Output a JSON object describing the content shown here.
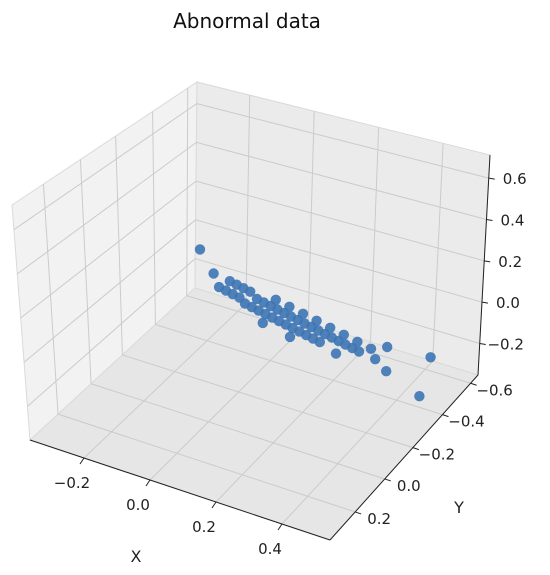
{
  "chart_data": {
    "type": "scatter",
    "projection": "3d",
    "title": "Abnormal data",
    "xlabel": "X",
    "ylabel": "Y",
    "zlabel": "",
    "x_ticks": [
      "−0.2",
      "0.0",
      "0.2",
      "0.4"
    ],
    "y_ticks": [
      "−0.6",
      "−0.4",
      "−0.2",
      "0.0",
      "0.2"
    ],
    "z_ticks": [
      "−0.2",
      "0.0",
      "0.2",
      "0.4",
      "0.6"
    ],
    "grid": true,
    "marker_color": "#3d74b4",
    "points": [
      {
        "x": -0.14,
        "y": 0.02,
        "z": 0.28
      },
      {
        "x": -0.1,
        "y": 0.02,
        "z": 0.17
      },
      {
        "x": -0.08,
        "y": 0.0,
        "z": 0.16
      },
      {
        "x": -0.06,
        "y": 0.0,
        "z": 0.15
      },
      {
        "x": -0.04,
        "y": 0.0,
        "z": 0.14
      },
      {
        "x": -0.02,
        "y": 0.0,
        "z": 0.13
      },
      {
        "x": -0.07,
        "y": 0.03,
        "z": 0.1
      },
      {
        "x": -0.05,
        "y": 0.03,
        "z": 0.09
      },
      {
        "x": -0.03,
        "y": 0.03,
        "z": 0.08
      },
      {
        "x": -0.01,
        "y": 0.03,
        "z": 0.07
      },
      {
        "x": 0.0,
        "y": 0.0,
        "z": 0.1
      },
      {
        "x": 0.02,
        "y": 0.0,
        "z": 0.09
      },
      {
        "x": 0.04,
        "y": 0.0,
        "z": 0.08
      },
      {
        "x": 0.06,
        "y": 0.0,
        "z": 0.07
      },
      {
        "x": 0.08,
        "y": 0.0,
        "z": 0.06
      },
      {
        "x": 0.1,
        "y": 0.0,
        "z": 0.05
      },
      {
        "x": 0.12,
        "y": 0.0,
        "z": 0.04
      },
      {
        "x": 0.14,
        "y": 0.0,
        "z": 0.03
      },
      {
        "x": 0.16,
        "y": 0.0,
        "z": 0.02
      },
      {
        "x": 0.18,
        "y": 0.0,
        "z": 0.01
      },
      {
        "x": 0.2,
        "y": 0.0,
        "z": 0.0
      },
      {
        "x": 0.22,
        "y": 0.0,
        "z": -0.01
      },
      {
        "x": 0.24,
        "y": 0.0,
        "z": -0.02
      },
      {
        "x": 0.26,
        "y": 0.0,
        "z": -0.03
      },
      {
        "x": 0.28,
        "y": 0.0,
        "z": -0.04
      },
      {
        "x": 0.3,
        "y": 0.0,
        "z": -0.05
      },
      {
        "x": 0.02,
        "y": 0.04,
        "z": 0.04
      },
      {
        "x": 0.04,
        "y": 0.04,
        "z": 0.03
      },
      {
        "x": 0.06,
        "y": 0.04,
        "z": 0.02
      },
      {
        "x": 0.08,
        "y": 0.04,
        "z": 0.01
      },
      {
        "x": 0.1,
        "y": 0.04,
        "z": 0.0
      },
      {
        "x": 0.12,
        "y": 0.04,
        "z": -0.01
      },
      {
        "x": 0.14,
        "y": 0.04,
        "z": -0.02
      },
      {
        "x": 0.16,
        "y": 0.04,
        "z": -0.03
      },
      {
        "x": 0.18,
        "y": 0.04,
        "z": -0.04
      },
      {
        "x": 0.2,
        "y": 0.04,
        "z": -0.05
      },
      {
        "x": 0.22,
        "y": 0.04,
        "z": -0.06
      },
      {
        "x": 0.24,
        "y": 0.04,
        "z": -0.07
      },
      {
        "x": 0.0,
        "y": -0.04,
        "z": 0.14
      },
      {
        "x": 0.04,
        "y": -0.04,
        "z": 0.12
      },
      {
        "x": 0.08,
        "y": -0.04,
        "z": 0.1
      },
      {
        "x": 0.12,
        "y": -0.04,
        "z": 0.08
      },
      {
        "x": 0.16,
        "y": -0.04,
        "z": 0.06
      },
      {
        "x": 0.2,
        "y": -0.04,
        "z": 0.04
      },
      {
        "x": 0.24,
        "y": -0.04,
        "z": 0.02
      },
      {
        "x": 0.28,
        "y": -0.04,
        "z": 0.0
      },
      {
        "x": 0.1,
        "y": 0.06,
        "z": -0.05
      },
      {
        "x": 0.18,
        "y": 0.06,
        "z": -0.09
      },
      {
        "x": 0.26,
        "y": 0.02,
        "z": -0.1
      },
      {
        "x": 0.32,
        "y": -0.02,
        "z": -0.06
      },
      {
        "x": 0.3,
        "y": -0.06,
        "z": 0.04
      },
      {
        "x": 0.38,
        "y": 0.0,
        "z": -0.12
      },
      {
        "x": 0.45,
        "y": -0.02,
        "z": -0.2
      },
      {
        "x": 0.4,
        "y": -0.08,
        "z": 0.05
      }
    ]
  }
}
